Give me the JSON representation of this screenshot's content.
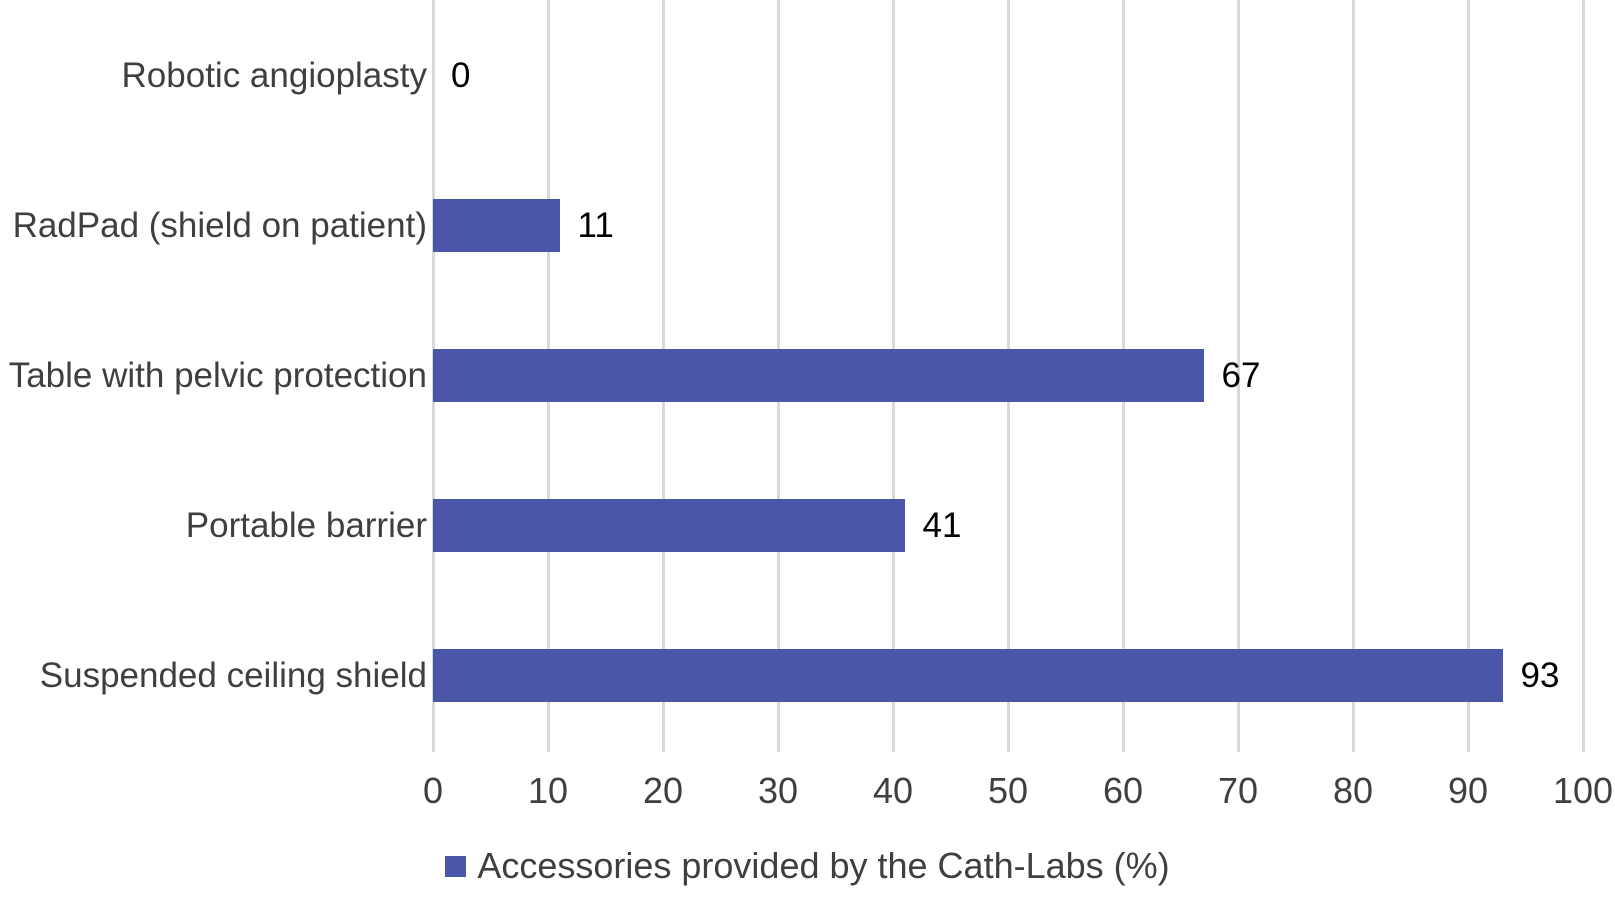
{
  "chart_data": {
    "type": "bar",
    "orientation": "horizontal",
    "categories": [
      "Robotic angioplasty",
      "RadPad (shield on patient)",
      "Table with pelvic protection",
      "Portable barrier",
      "Suspended ceiling shield"
    ],
    "values": [
      0,
      11,
      67,
      41,
      93
    ],
    "series": [
      {
        "name": "Accessories provided by the Cath-Labs (%)",
        "values": [
          0,
          11,
          67,
          41,
          93
        ]
      }
    ],
    "data_labels": [
      "0",
      "11",
      "67",
      "41",
      "93"
    ],
    "xlabel": "",
    "ylabel": "",
    "title": "",
    "xlim": [
      0,
      100
    ],
    "x_ticks": [
      0,
      10,
      20,
      30,
      40,
      50,
      60,
      70,
      80,
      90,
      100
    ],
    "grid": true,
    "legend_position": "bottom",
    "colors": {
      "bar": "#4a57a8",
      "gridline": "#d9d9d9",
      "category_label": "#3f3f3f",
      "tick_label": "#3f3f3f",
      "value_label": "#000000",
      "background": "#ffffff"
    }
  },
  "legend": {
    "label": "Accessories provided by the Cath-Labs (%)"
  }
}
